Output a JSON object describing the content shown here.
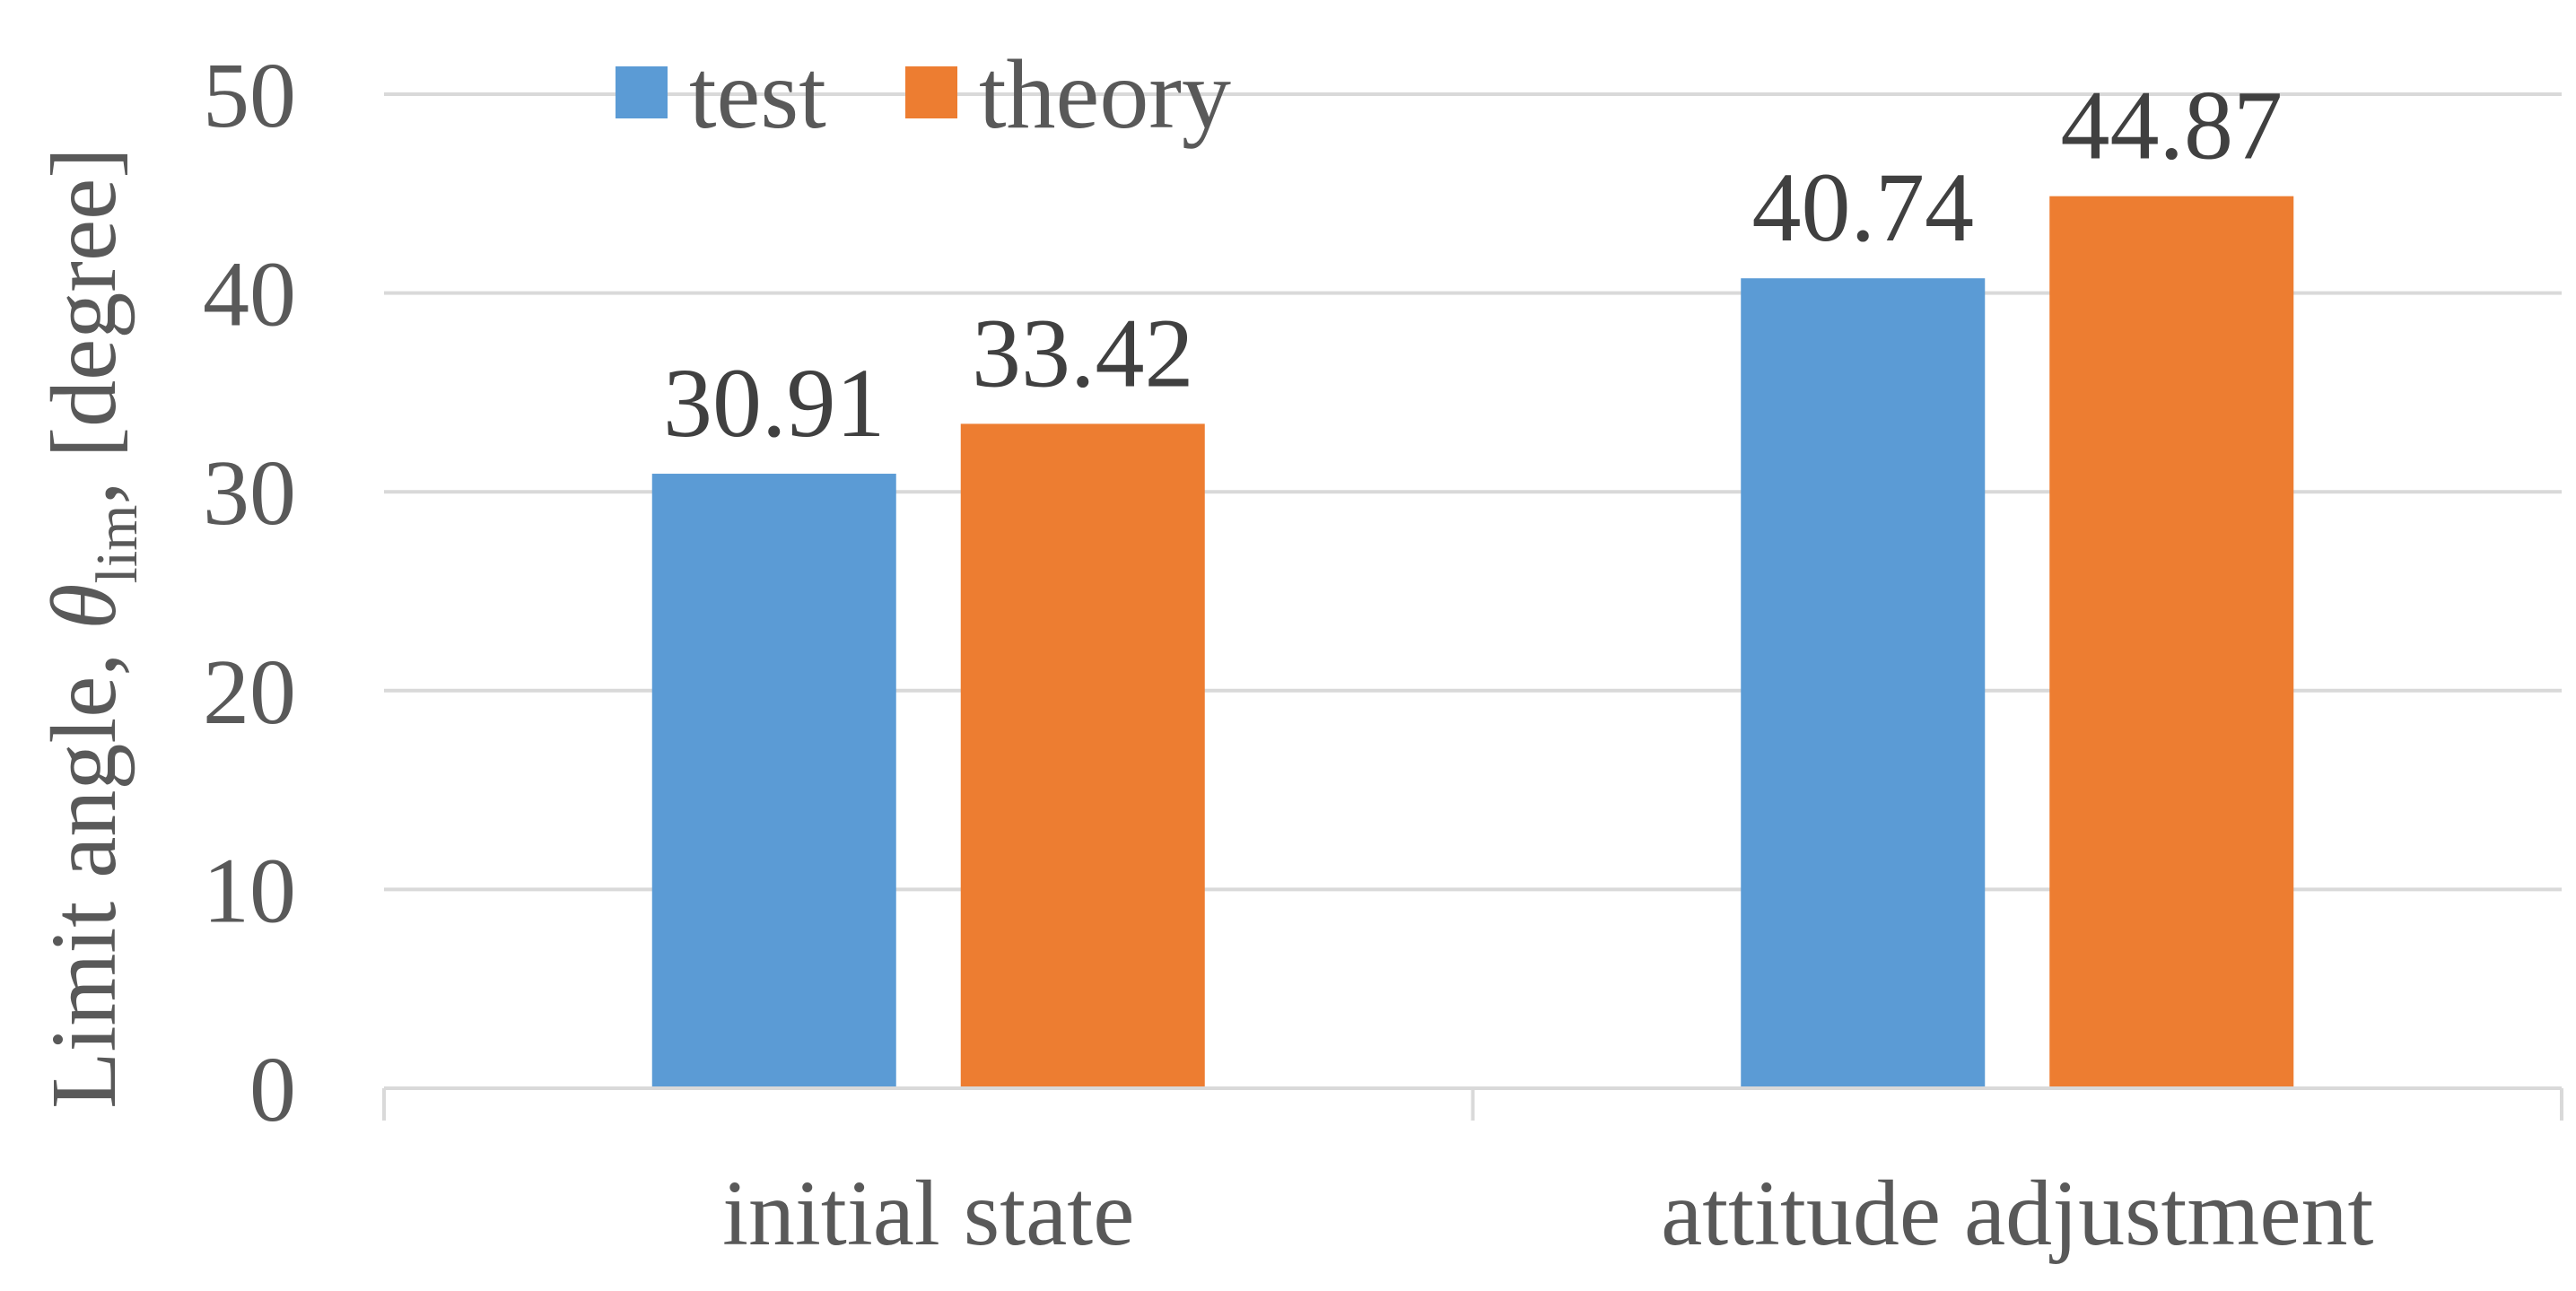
{
  "chart_data": {
    "type": "bar",
    "categories": [
      "initial state",
      "attitude adjustment"
    ],
    "series": [
      {
        "name": "test",
        "values": [
          30.91,
          40.74
        ],
        "color": "#5B9BD5"
      },
      {
        "name": "theory",
        "values": [
          33.42,
          44.87
        ],
        "color": "#ED7D31"
      }
    ],
    "data_labels": [
      [
        "30.91",
        "40.74"
      ],
      [
        "33.42",
        "44.87"
      ]
    ],
    "ylabel": {
      "prefix": "Limit angle, ",
      "symbol": "θ",
      "subscript": "lim",
      "suffix": ", [degree]"
    },
    "ylim": [
      0,
      50
    ],
    "yticks": [
      "0",
      "10",
      "20",
      "30",
      "40",
      "50"
    ],
    "grid": true,
    "legend_position": "top-left",
    "colors": {
      "grid": "#D9D9D9",
      "axis": "#D9D9D9",
      "text": "#595959"
    }
  }
}
